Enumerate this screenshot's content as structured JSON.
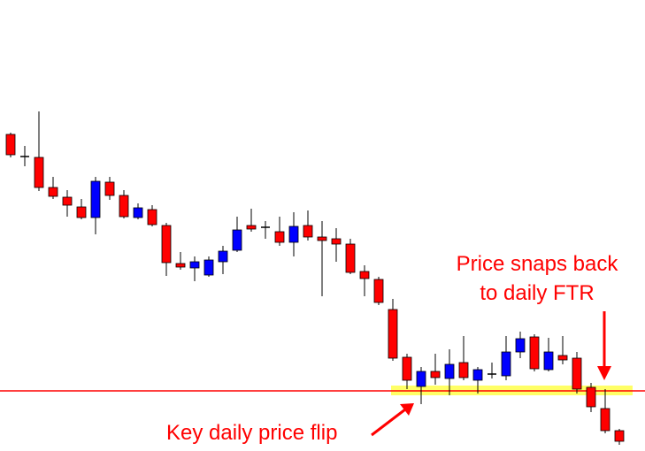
{
  "chart_data": {
    "type": "candlestick",
    "open": [
      358,
      333,
      332,
      298,
      287,
      276,
      264,
      304,
      289,
      264,
      273,
      255,
      212,
      207,
      199,
      214,
      227,
      255,
      253,
      248,
      236,
      255,
      242,
      240,
      234,
      203,
      194,
      160,
      106,
      73,
      90,
      82,
      100,
      80,
      87,
      85,
      112,
      129,
      92,
      108,
      105,
      72,
      48,
      23
    ],
    "high": [
      360,
      345,
      384,
      310,
      295,
      285,
      310,
      310,
      295,
      280,
      278,
      258,
      225,
      220,
      220,
      232,
      265,
      274,
      260,
      265,
      270,
      272,
      260,
      252,
      240,
      210,
      197,
      172,
      110,
      95,
      110,
      115,
      130,
      95,
      100,
      130,
      135,
      132,
      128,
      130,
      112,
      77,
      70,
      25
    ],
    "low": [
      332,
      322,
      294,
      285,
      265,
      262,
      245,
      284,
      263,
      262,
      254,
      198,
      205,
      192,
      197,
      200,
      225,
      248,
      240,
      232,
      220,
      238,
      175,
      214,
      200,
      175,
      165,
      102,
      70,
      53,
      75,
      63,
      80,
      65,
      82,
      80,
      105,
      90,
      90,
      98,
      65,
      44,
      20,
      7
    ],
    "close": [
      335,
      333,
      298,
      288,
      278,
      264,
      305,
      289,
      265,
      275,
      256,
      213,
      208,
      214,
      216,
      226,
      250,
      251,
      253,
      236,
      254,
      242,
      238,
      234,
      202,
      195,
      168,
      105,
      80,
      90,
      83,
      98,
      83,
      92,
      87,
      112,
      127,
      93,
      112,
      103,
      70,
      50,
      23,
      11
    ],
    "up_color": "#0000ff",
    "down_color": "#ff0000",
    "ylim": [
      0,
      510
    ],
    "level": 68,
    "level_color": "#ff0000",
    "zone": [
      63,
      74
    ],
    "zone_color": "#ffff66",
    "annotations": [
      "Price snaps back",
      "to daily FTR",
      "Key daily price flip"
    ]
  }
}
